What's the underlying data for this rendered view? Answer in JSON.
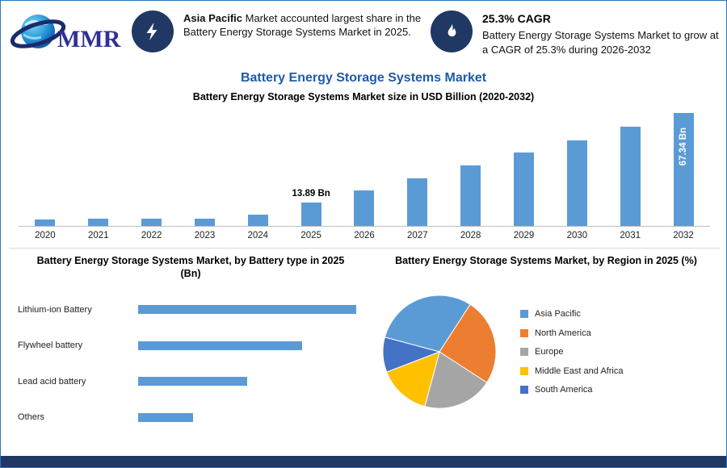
{
  "logo": {
    "text": "MMR"
  },
  "header": {
    "callout1": {
      "highlight": "Asia Pacific",
      "text": " Market accounted largest share in the Battery Energy Storage Systems Market in 2025."
    },
    "callout2": {
      "heading": "25.3% CAGR",
      "text": "Battery Energy Storage Systems Market to grow at a CAGR of 25.3% during 2026-2032"
    }
  },
  "title": "Battery Energy Storage Systems Market",
  "colors": {
    "accent_navy": "#1F3864",
    "title_blue": "#1F5AA8",
    "bar_blue": "#5B9BD5",
    "footer_navy": "#1F3864"
  },
  "chart_data": [
    {
      "type": "bar",
      "title": "Battery Energy Storage Systems Market size in USD Billion (2020-2032)",
      "categories": [
        "2020",
        "2021",
        "2022",
        "2023",
        "2024",
        "2025",
        "2026",
        "2027",
        "2028",
        "2029",
        "2030",
        "2031",
        "2032"
      ],
      "values": [
        4.0,
        4.1,
        4.2,
        4.3,
        6.5,
        13.89,
        21.0,
        28.5,
        36.0,
        43.5,
        51.0,
        59.0,
        67.34
      ],
      "unit": "Bn",
      "bar_color": "#5B9BD5",
      "ylim": [
        0,
        70
      ],
      "grid": false,
      "annotations": [
        {
          "category": "2025",
          "text": "13.89 Bn",
          "placement": "above"
        },
        {
          "category": "2032",
          "text": "67.34 Bn",
          "placement": "inside-vertical"
        }
      ]
    },
    {
      "type": "bar",
      "orientation": "horizontal",
      "title": "Battery Energy Storage Systems Market, by Battery type in 2025 (Bn)",
      "categories": [
        "Lithium-ion Battery",
        "Flywheel battery",
        "Lead acid battery",
        "Others"
      ],
      "values": [
        5.6,
        4.2,
        2.8,
        1.4
      ],
      "unit": "Bn",
      "bar_color": "#5B9BD5",
      "xlim": [
        0,
        5.6
      ]
    },
    {
      "type": "pie",
      "title": "Battery Energy Storage Systems Market, by Region in 2025 (%)",
      "categories": [
        "Asia Pacific",
        "North America",
        "Europe",
        "Middle East and Africa",
        "South America"
      ],
      "values": [
        30,
        25,
        20,
        15,
        10
      ],
      "unit": "%",
      "colors": [
        "#5B9BD5",
        "#ED7D31",
        "#A5A5A5",
        "#FFC000",
        "#4472C4"
      ],
      "start_angle_deg": 285,
      "legend_position": "right"
    }
  ]
}
